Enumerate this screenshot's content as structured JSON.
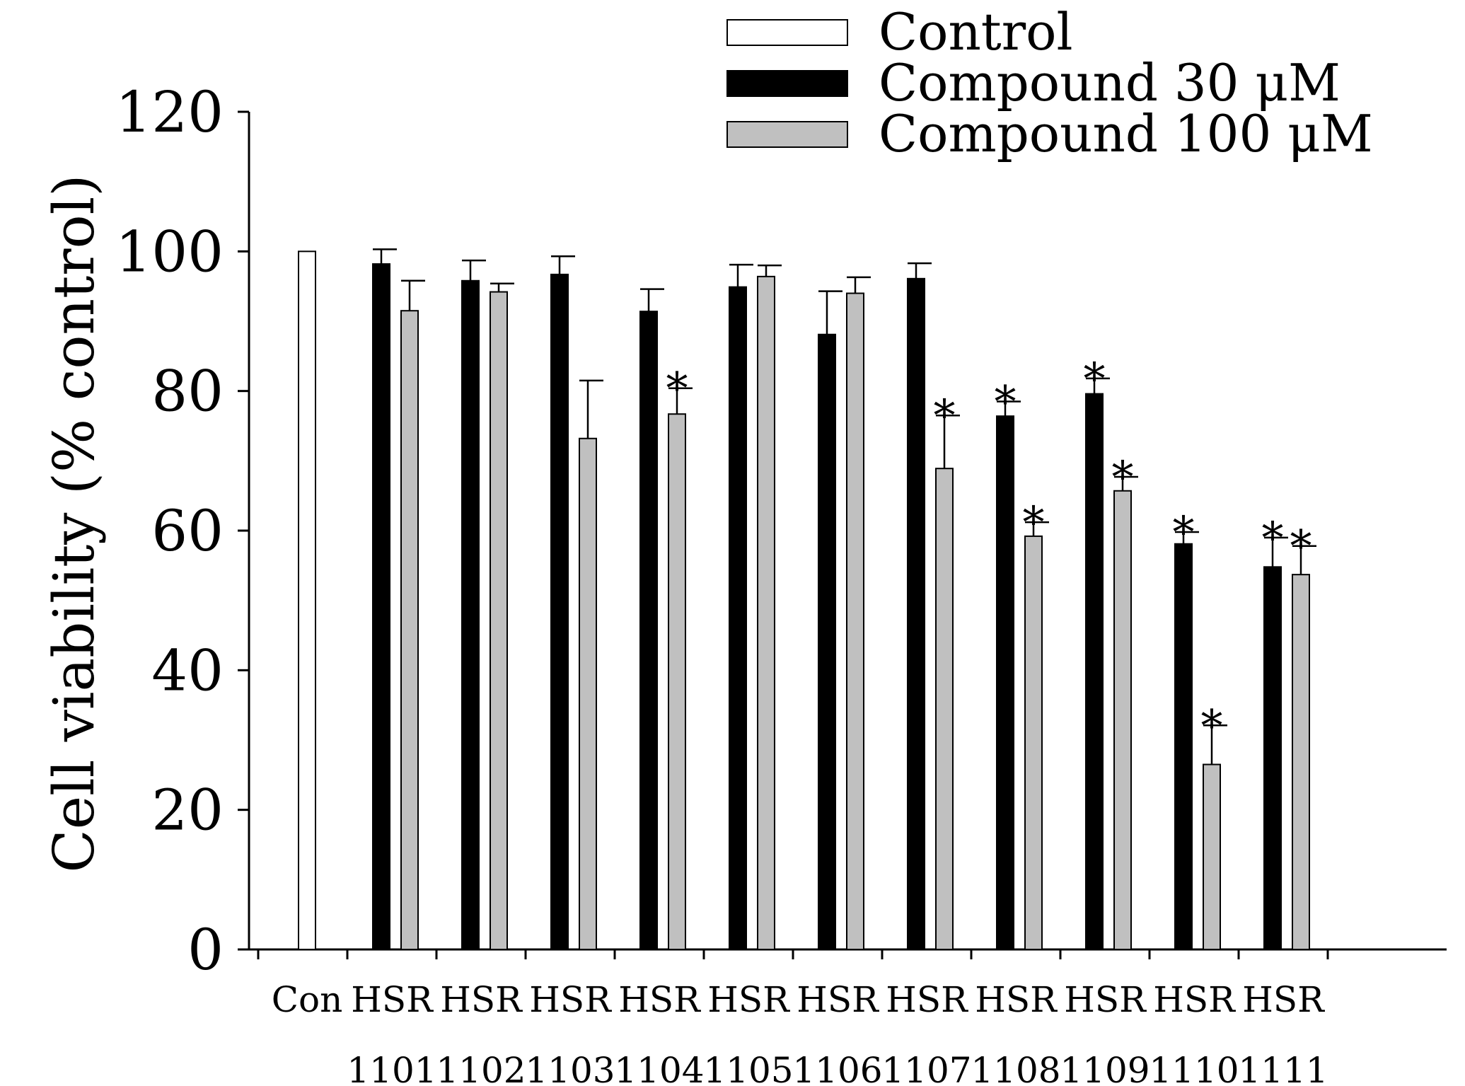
{
  "chart_data": {
    "type": "bar",
    "title": "",
    "xlabel": "",
    "ylabel": "Cell viability (% control)",
    "ylim": [
      0,
      120
    ],
    "yticks": [
      0,
      20,
      40,
      60,
      80,
      100,
      120
    ],
    "categories": [
      {
        "line1": "Con",
        "line2": ""
      },
      {
        "line1": "HSR",
        "line2": "1101"
      },
      {
        "line1": "HSR",
        "line2": "1102"
      },
      {
        "line1": "HSR",
        "line2": "1103"
      },
      {
        "line1": "HSR",
        "line2": "1104"
      },
      {
        "line1": "HSR",
        "line2": "1105"
      },
      {
        "line1": "HSR",
        "line2": "1106"
      },
      {
        "line1": "HSR",
        "line2": "1107"
      },
      {
        "line1": "HSR",
        "line2": "1108"
      },
      {
        "line1": "HSR",
        "line2": "1109"
      },
      {
        "line1": "HSR",
        "line2": "1110"
      },
      {
        "line1": "HSR",
        "line2": "1111"
      }
    ],
    "series": [
      {
        "name": "Control",
        "color": "#ffffff",
        "values": [
          100,
          null,
          null,
          null,
          null,
          null,
          null,
          null,
          null,
          null,
          null,
          null
        ],
        "errors": [
          0,
          null,
          null,
          null,
          null,
          null,
          null,
          null,
          null,
          null,
          null,
          null
        ],
        "significant": [
          false,
          false,
          false,
          false,
          false,
          false,
          false,
          false,
          false,
          false,
          false,
          false
        ]
      },
      {
        "name": "Compound 30 μM",
        "color": "#000000",
        "values": [
          null,
          98.2,
          95.8,
          96.7,
          91.4,
          94.9,
          88.1,
          96.1,
          76.4,
          79.6,
          58.1,
          54.8
        ],
        "errors": [
          null,
          2.1,
          2.9,
          2.6,
          3.2,
          3.2,
          6.2,
          2.2,
          2.1,
          2.2,
          1.7,
          4.2
        ],
        "significant": [
          false,
          false,
          false,
          false,
          false,
          false,
          false,
          false,
          true,
          true,
          true,
          true
        ]
      },
      {
        "name": "Compound 100 μM",
        "color": "#c0c0c0",
        "values": [
          null,
          91.5,
          94.2,
          73.2,
          76.7,
          96.4,
          94.0,
          68.9,
          59.2,
          65.7,
          26.5,
          53.7
        ],
        "errors": [
          null,
          4.3,
          1.2,
          8.3,
          3.7,
          1.6,
          2.3,
          7.6,
          2.0,
          2.0,
          5.6,
          4.1
        ],
        "significant": [
          false,
          false,
          false,
          false,
          true,
          false,
          false,
          true,
          true,
          true,
          true,
          true
        ]
      }
    ],
    "significance_marker": "*",
    "legend_position": "top-right"
  }
}
